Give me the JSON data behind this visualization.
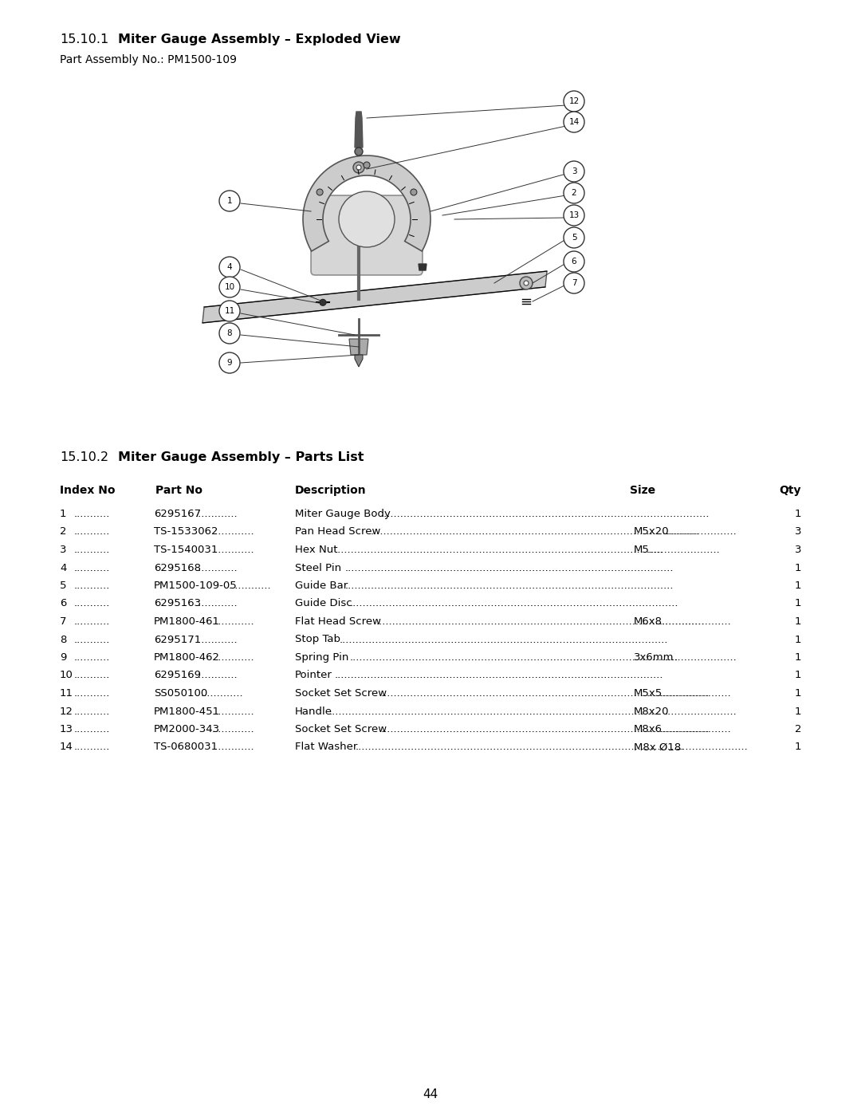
{
  "page_number": "44",
  "section1_number": "15.10.1",
  "section1_title": "Miter Gauge Assembly – Exploded View",
  "part_assembly_no": "Part Assembly No.: PM1500-109",
  "section2_number": "15.10.2",
  "section2_title": "Miter Gauge Assembly – Parts List",
  "table_headers": [
    "Index No",
    "Part No",
    "Description",
    "Size",
    "Qty"
  ],
  "parts": [
    {
      "index": "1",
      "part_no": "6295167",
      "description": "Miter Gauge Body",
      "size": "",
      "qty": "1"
    },
    {
      "index": "2",
      "part_no": "TS-1533062",
      "description": "Pan Head Screw",
      "size": "M5x20",
      "qty": "3"
    },
    {
      "index": "3",
      "part_no": "TS-1540031",
      "description": "Hex Nut",
      "size": "M5",
      "qty": "3"
    },
    {
      "index": "4",
      "part_no": "6295168",
      "description": "Steel Pin",
      "size": "",
      "qty": "1"
    },
    {
      "index": "5",
      "part_no": "PM1500-109-05",
      "description": "Guide Bar",
      "size": "",
      "qty": "1"
    },
    {
      "index": "6",
      "part_no": "6295163",
      "description": "Guide Disc",
      "size": "",
      "qty": "1"
    },
    {
      "index": "7",
      "part_no": "PM1800-461",
      "description": "Flat Head Screw",
      "size": "M6x8",
      "qty": "1"
    },
    {
      "index": "8",
      "part_no": "6295171",
      "description": "Stop Tab",
      "size": "",
      "qty": "1"
    },
    {
      "index": "9",
      "part_no": "PM1800-462",
      "description": "Spring Pin",
      "size": "3x6mm",
      "qty": "1"
    },
    {
      "index": "10",
      "part_no": "6295169",
      "description": "Pointer",
      "size": "",
      "qty": "1"
    },
    {
      "index": "11",
      "part_no": "SS050100",
      "description": "Socket Set Screw",
      "size": "M5x5",
      "qty": "1"
    },
    {
      "index": "12",
      "part_no": "PM1800-451",
      "description": "Handle",
      "size": "M8x20",
      "qty": "1"
    },
    {
      "index": "13",
      "part_no": "PM2000-343",
      "description": "Socket Set Screw",
      "size": "M8x6",
      "qty": "2"
    },
    {
      "index": "14",
      "part_no": "TS-0680031",
      "description": "Flat Washer",
      "size": "M8x Ø18",
      "qty": "1"
    }
  ],
  "bg_color": "#ffffff",
  "text_color": "#000000"
}
